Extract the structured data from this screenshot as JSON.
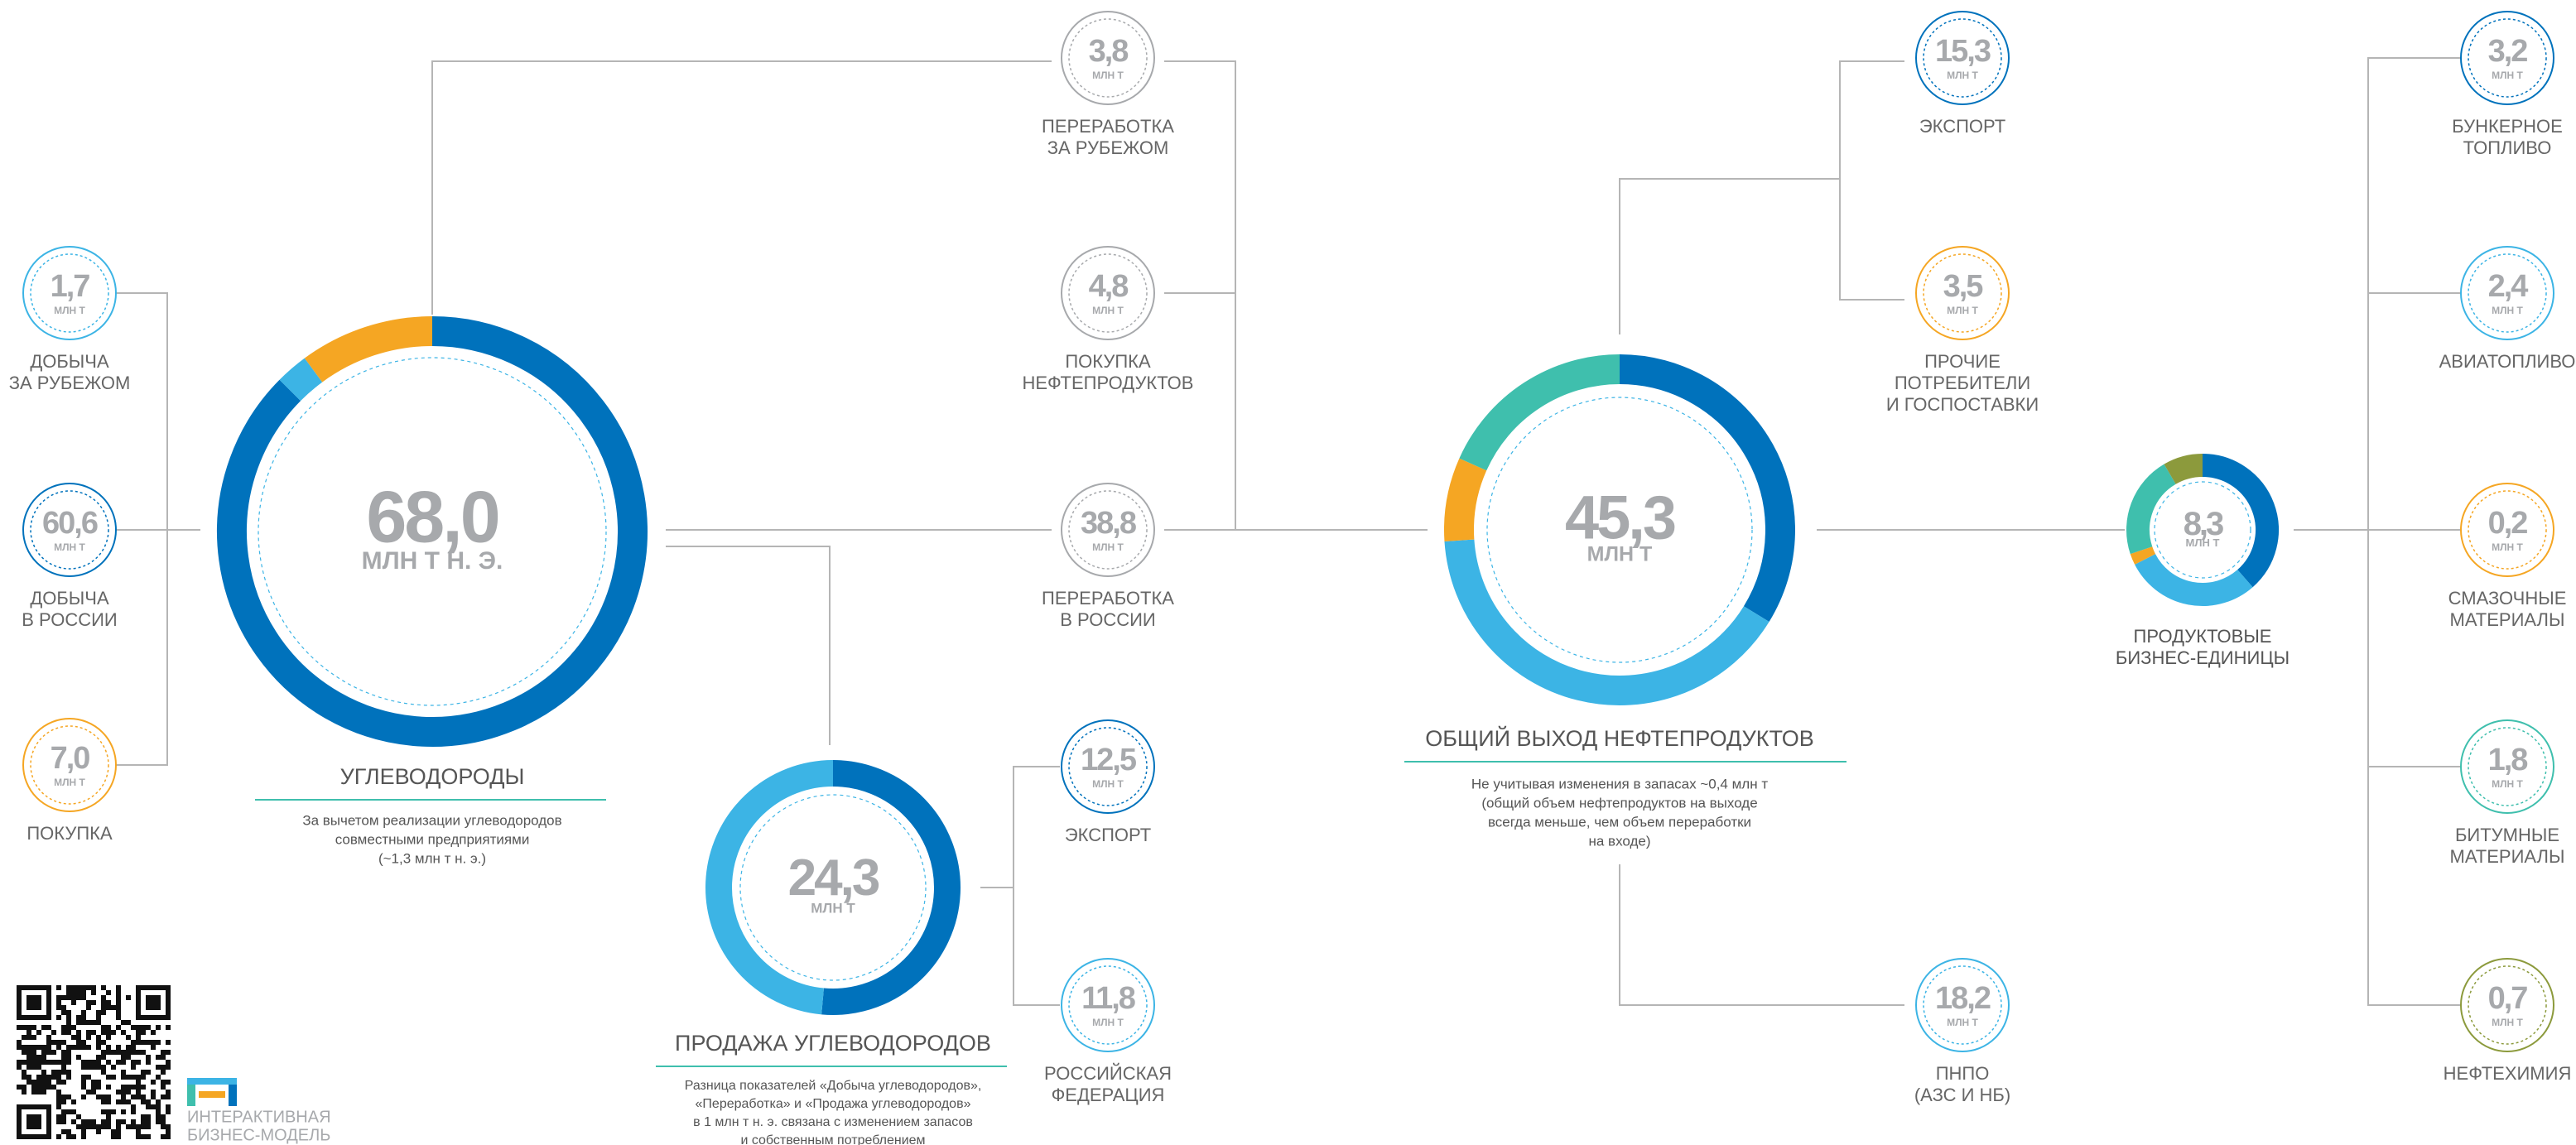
{
  "production": {
    "value": "68,0",
    "unit": "МЛН Т Н. Э.",
    "title": "УГЛЕВОДОРОДЫ",
    "note": [
      "За вычетом реализации углеводородов",
      "совместными предприятиями",
      "(~1,3 млн т н. э.)"
    ],
    "inputs": [
      {
        "value": "1,7",
        "unit": "МЛН Т",
        "label": [
          "ДОБЫЧА",
          "ЗА РУБЕЖОМ"
        ],
        "color": "#3cb4e5"
      },
      {
        "value": "60,6",
        "unit": "МЛН Т",
        "label": [
          "ДОБЫЧА",
          "В РОССИИ"
        ],
        "color": "#0072bc"
      },
      {
        "value": "7,0",
        "unit": "МЛН Т",
        "label": [
          "ПОКУПКА"
        ],
        "color": "#f5a623"
      }
    ]
  },
  "sales": {
    "value": "24,3",
    "unit": "МЛН Т",
    "title": "ПРОДАЖА УГЛЕВОДОРОДОВ",
    "note": [
      "Разница показателей «Добыча углеводородов»,",
      "«Переработка» и «Продажа углеводородов»",
      "в 1 млн т н. э. связана с изменением запасов",
      "и собственным потреблением"
    ],
    "outputs": [
      {
        "value": "12,5",
        "unit": "МЛН Т",
        "label": [
          "ЭКСПОРТ"
        ],
        "color": "#0072bc"
      },
      {
        "value": "11,8",
        "unit": "МЛН Т",
        "label": [
          "РОССИЙСКАЯ",
          "ФЕДЕРАЦИЯ"
        ],
        "color": "#3cb4e5"
      }
    ]
  },
  "output": {
    "value": "45,3",
    "unit": "МЛН Т",
    "title": "ОБЩИЙ ВЫХОД НЕФТЕПРОДУКТОВ",
    "note": [
      "Не учитывая изменения в запасах ~0,4 млн т",
      "(общий объем нефтепродуктов на выходе",
      "всегда меньше, чем объем переработки",
      "на входе)"
    ],
    "inputs": [
      {
        "value": "3,8",
        "unit": "МЛН Т",
        "label": [
          "ПЕРЕРАБОТКА",
          "ЗА РУБЕЖОМ"
        ],
        "color": "#a7a9ac"
      },
      {
        "value": "4,8",
        "unit": "МЛН Т",
        "label": [
          "ПОКУПКА",
          "НЕФТЕПРОДУКТОВ"
        ],
        "color": "#a7a9ac"
      },
      {
        "value": "38,8",
        "unit": "МЛН Т",
        "label": [
          "ПЕРЕРАБОТКА",
          "В РОССИИ"
        ],
        "color": "#a7a9ac"
      }
    ],
    "outputs": [
      {
        "value": "15,3",
        "unit": "МЛН Т",
        "label": [
          "ЭКСПОРТ"
        ],
        "color": "#0072bc"
      },
      {
        "value": "3,5",
        "unit": "МЛН Т",
        "label": [
          "ПРОЧИЕ",
          "ПОТРЕБИТЕЛИ",
          "И ГОСПОСТАВКИ"
        ],
        "color": "#f5a623"
      },
      {
        "value": "18,2",
        "unit": "МЛН Т",
        "label": [
          "ПНПО",
          "(АЗС И НБ)"
        ],
        "color": "#3cb4e5"
      }
    ]
  },
  "business_units": {
    "value": "8,3",
    "unit": "МЛН Т",
    "title": [
      "ПРОДУКТОВЫЕ",
      "БИЗНЕС-ЕДИНИЦЫ"
    ],
    "color": "#3fbfad",
    "outputs": [
      {
        "value": "3,2",
        "unit": "МЛН Т",
        "label": [
          "БУНКЕРНОЕ",
          "ТОПЛИВО"
        ],
        "color": "#0072bc"
      },
      {
        "value": "2,4",
        "unit": "МЛН Т",
        "label": [
          "АВИАТОПЛИВО"
        ],
        "color": "#3cb4e5"
      },
      {
        "value": "0,2",
        "unit": "МЛН Т",
        "label": [
          "СМАЗОЧНЫЕ",
          "МАТЕРИАЛЫ"
        ],
        "color": "#f5a623"
      },
      {
        "value": "1,8",
        "unit": "МЛН Т",
        "label": [
          "БИТУМНЫЕ",
          "МАТЕРИАЛЫ"
        ],
        "color": "#3fbfad"
      },
      {
        "value": "0,7",
        "unit": "МЛН Т",
        "label": [
          "НЕФТЕХИМИЯ"
        ],
        "color": "#8c9a3c"
      }
    ]
  },
  "footer": {
    "label": [
      "ИНТЕРАКТИВНАЯ",
      "БИЗНЕС-МОДЕЛЬ"
    ]
  }
}
